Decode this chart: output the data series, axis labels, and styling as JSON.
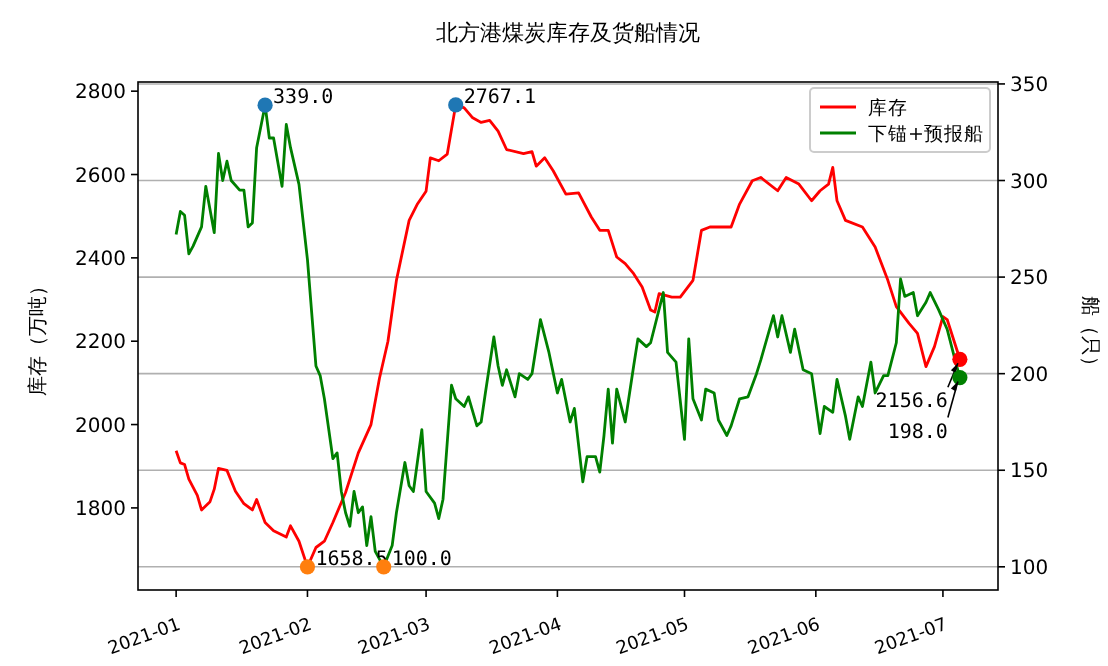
{
  "chart_data": {
    "type": "line",
    "title": "北方港煤炭库存及货船情况",
    "ylabel": "库存（万吨）",
    "y2label": "船（只）",
    "legend": "top right",
    "grid": "y2",
    "xlim": [
      "2020-12-23",
      "2021-07-14"
    ],
    "xticks": [
      {
        "value": "2021-01-01",
        "label": "2021-01"
      },
      {
        "value": "2021-02-01",
        "label": "2021-02"
      },
      {
        "value": "2021-03-01",
        "label": "2021-03"
      },
      {
        "value": "2021-04-01",
        "label": "2021-04"
      },
      {
        "value": "2021-05-01",
        "label": "2021-05"
      },
      {
        "value": "2021-06-01",
        "label": "2021-06"
      },
      {
        "value": "2021-07-01",
        "label": "2021-07"
      }
    ],
    "ylim": [
      1603,
      2822
    ],
    "yticks": [
      1800,
      2000,
      2200,
      2400,
      2600,
      2800
    ],
    "y2lim": [
      88,
      351
    ],
    "y2ticks": [
      100,
      150,
      200,
      250,
      300,
      350
    ],
    "annotations": [
      "339.0",
      {
        "text": "2767.1",
        "x": "2021-03-08",
        "y": 2767.1
      },
      {
        "text": "1658.5",
        "x": "2021-02-01",
        "y": 1658.5
      },
      "100.0",
      {
        "text": "2156.6",
        "x": "2021-07-05",
        "y": 2156.6
      },
      "198.0"
    ],
    "series": [
      {
        "name": "库存",
        "color": "#ff0000",
        "axis": "y",
        "x": [
          "2021-01-01",
          "2021-01-02",
          "2021-01-03",
          "2021-01-04",
          "2021-01-06",
          "2021-01-07",
          "2021-01-09",
          "2021-01-10",
          "2021-01-11",
          "2021-01-13",
          "2021-01-15",
          "2021-01-17",
          "2021-01-19",
          "2021-01-20",
          "2021-01-22",
          "2021-01-24",
          "2021-01-27",
          "2021-01-28",
          "2021-01-30",
          "2021-02-01",
          "2021-02-03",
          "2021-02-05",
          "2021-02-07",
          "2021-02-10",
          "2021-02-13",
          "2021-02-16",
          "2021-02-18",
          "2021-02-20",
          "2021-02-22",
          "2021-02-25",
          "2021-02-27",
          "2021-03-01",
          "2021-03-02",
          "2021-03-04",
          "2021-03-06",
          "2021-03-08",
          "2021-03-10",
          "2021-03-12",
          "2021-03-14",
          "2021-03-16",
          "2021-03-18",
          "2021-03-20",
          "2021-03-24",
          "2021-03-26",
          "2021-03-27",
          "2021-03-29",
          "2021-03-31",
          "2021-04-03",
          "2021-04-06",
          "2021-04-09",
          "2021-04-11",
          "2021-04-13",
          "2021-04-15",
          "2021-04-17",
          "2021-04-19",
          "2021-04-21",
          "2021-04-23",
          "2021-04-24",
          "2021-04-25",
          "2021-04-28",
          "2021-04-30",
          "2021-05-03",
          "2021-05-05",
          "2021-05-07",
          "2021-05-12",
          "2021-05-14",
          "2021-05-17",
          "2021-05-19",
          "2021-05-23",
          "2021-05-25",
          "2021-05-28",
          "2021-05-31",
          "2021-06-02",
          "2021-06-04",
          "2021-06-05",
          "2021-06-06",
          "2021-06-08",
          "2021-06-12",
          "2021-06-15",
          "2021-06-18",
          "2021-06-20",
          "2021-06-23",
          "2021-06-25",
          "2021-06-27",
          "2021-06-29",
          "2021-07-01",
          "2021-07-02",
          "2021-07-05"
        ],
        "values": [
          1937,
          1908,
          1904,
          1869,
          1830,
          1795,
          1815,
          1845,
          1895,
          1890,
          1840,
          1810,
          1795,
          1820,
          1765,
          1745,
          1730,
          1757,
          1720,
          1658.5,
          1705,
          1720,
          1765,
          1837,
          1932,
          2000,
          2111,
          2200,
          2346,
          2490,
          2530,
          2560,
          2640,
          2633,
          2649,
          2767.1,
          2760,
          2736,
          2725,
          2730,
          2704,
          2660,
          2650,
          2655,
          2620,
          2640,
          2609,
          2553,
          2556,
          2498,
          2466,
          2466,
          2402,
          2386,
          2362,
          2330,
          2275,
          2270,
          2314,
          2306,
          2306,
          2346,
          2466,
          2474,
          2474,
          2529,
          2585,
          2593,
          2561,
          2593,
          2577,
          2537,
          2561,
          2577,
          2617,
          2537,
          2490,
          2474,
          2426,
          2346,
          2283,
          2243,
          2219,
          2139,
          2187,
          2259,
          2252,
          2156.6
        ]
      },
      {
        "name": "下锚+预报船",
        "color": "#008000",
        "axis": "y2",
        "x": [
          "2021-01-01",
          "2021-01-02",
          "2021-01-03",
          "2021-01-04",
          "2021-01-05",
          "2021-01-07",
          "2021-01-08",
          "2021-01-10",
          "2021-01-11",
          "2021-01-12",
          "2021-01-13",
          "2021-01-14",
          "2021-01-16",
          "2021-01-17",
          "2021-01-18",
          "2021-01-19",
          "2021-01-20",
          "2021-01-22",
          "2021-01-23",
          "2021-01-24",
          "2021-01-26",
          "2021-01-27",
          "2021-01-28",
          "2021-01-30",
          "2021-02-01",
          "2021-02-03",
          "2021-02-04",
          "2021-02-05",
          "2021-02-07",
          "2021-02-08",
          "2021-02-09",
          "2021-02-10",
          "2021-02-11",
          "2021-02-12",
          "2021-02-13",
          "2021-02-14",
          "2021-02-15",
          "2021-02-16",
          "2021-02-17",
          "2021-02-19",
          "2021-02-21",
          "2021-02-22",
          "2021-02-24",
          "2021-02-25",
          "2021-02-26",
          "2021-02-28",
          "2021-03-01",
          "2021-03-03",
          "2021-03-04",
          "2021-03-05",
          "2021-03-07",
          "2021-03-08",
          "2021-03-10",
          "2021-03-11",
          "2021-03-13",
          "2021-03-14",
          "2021-03-15",
          "2021-03-17",
          "2021-03-18",
          "2021-03-19",
          "2021-03-20",
          "2021-03-22",
          "2021-03-23",
          "2021-03-25",
          "2021-03-26",
          "2021-03-28",
          "2021-03-30",
          "2021-04-01",
          "2021-04-02",
          "2021-04-04",
          "2021-04-05",
          "2021-04-07",
          "2021-04-08",
          "2021-04-10",
          "2021-04-11",
          "2021-04-12",
          "2021-04-13",
          "2021-04-14",
          "2021-04-15",
          "2021-04-17",
          "2021-04-19",
          "2021-04-20",
          "2021-04-22",
          "2021-04-23",
          "2021-04-26",
          "2021-04-27",
          "2021-04-29",
          "2021-05-01",
          "2021-05-02",
          "2021-05-03",
          "2021-05-05",
          "2021-05-06",
          "2021-05-08",
          "2021-05-09",
          "2021-05-11",
          "2021-05-12",
          "2021-05-14",
          "2021-05-16",
          "2021-05-18",
          "2021-05-19",
          "2021-05-22",
          "2021-05-23",
          "2021-05-24",
          "2021-05-26",
          "2021-05-27",
          "2021-05-29",
          "2021-05-31",
          "2021-06-02",
          "2021-06-03",
          "2021-06-05",
          "2021-06-06",
          "2021-06-08",
          "2021-06-09",
          "2021-06-11",
          "2021-06-12",
          "2021-06-14",
          "2021-06-15",
          "2021-06-17",
          "2021-06-18",
          "2021-06-20",
          "2021-06-21",
          "2021-06-22",
          "2021-06-24",
          "2021-06-25",
          "2021-06-27",
          "2021-06-28",
          "2021-06-30",
          "2021-07-02",
          "2021-07-04",
          "2021-07-05"
        ],
        "values": [
          272,
          284,
          282,
          262,
          266,
          276,
          297,
          273,
          314,
          300,
          310,
          300,
          295,
          295,
          276,
          278,
          317,
          339,
          322,
          322,
          297,
          329,
          317,
          298,
          259,
          204,
          199,
          187,
          156,
          159,
          139,
          128,
          121,
          139,
          128,
          131,
          111,
          126,
          108,
          100,
          111,
          128,
          154,
          142,
          139,
          171,
          139,
          133,
          125,
          135,
          194,
          187,
          183,
          188,
          173,
          175,
          190,
          219,
          204,
          194,
          202,
          188,
          200,
          197,
          200,
          228,
          211,
          190,
          197,
          175,
          182,
          144,
          157,
          157,
          149,
          168,
          192,
          164,
          192,
          175,
          204,
          218,
          214,
          216,
          242,
          211,
          206,
          166,
          218,
          187,
          176,
          192,
          190,
          176,
          168,
          173,
          187,
          188,
          200,
          207,
          230,
          219,
          230,
          211,
          223,
          202,
          200,
          169,
          183,
          180,
          197,
          178,
          166,
          188,
          183,
          206,
          190,
          199,
          199,
          216,
          249,
          240,
          242,
          230,
          237,
          242,
          233,
          223,
          206,
          198
        ]
      }
    ]
  }
}
